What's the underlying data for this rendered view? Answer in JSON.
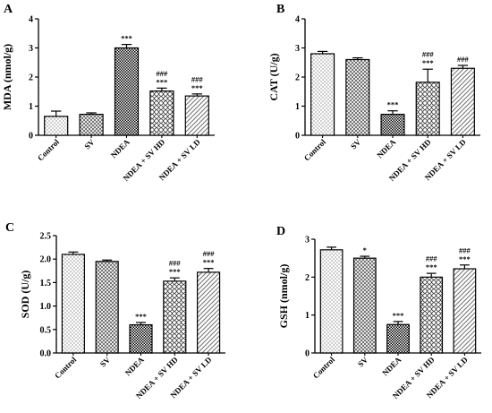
{
  "chart_data": [
    {
      "panel": "A",
      "type": "bar",
      "ylabel": "MDA (nmol/g)",
      "ylim": [
        0,
        4
      ],
      "yticks": [
        "0",
        "1",
        "2",
        "3",
        "4"
      ],
      "categories": [
        "Control",
        "SV",
        "NDEA",
        "NDEA + SV HD",
        "NDEA + SV LD"
      ],
      "values": [
        0.65,
        0.72,
        3.0,
        1.52,
        1.35
      ],
      "errors": [
        0.18,
        0.05,
        0.12,
        0.1,
        0.07
      ],
      "annotations": [
        [],
        [],
        [
          "***"
        ],
        [
          "###",
          "***"
        ],
        [
          "###",
          "***"
        ]
      ]
    },
    {
      "panel": "B",
      "type": "bar",
      "ylabel": "CAT (U/g)",
      "ylim": [
        0,
        4
      ],
      "yticks": [
        "0",
        "1",
        "2",
        "3",
        "4"
      ],
      "categories": [
        "Control",
        "SV",
        "NDEA",
        "NDEA + SV HD",
        "NDEA + SV LD"
      ],
      "values": [
        2.8,
        2.6,
        0.72,
        1.82,
        2.3
      ],
      "errors": [
        0.08,
        0.06,
        0.12,
        0.45,
        0.1
      ],
      "annotations": [
        [],
        [],
        [
          "***"
        ],
        [
          "###",
          "***"
        ],
        [
          "###"
        ]
      ]
    },
    {
      "panel": "C",
      "type": "bar",
      "ylabel": "SOD (U/g)",
      "ylim": [
        0,
        2.5
      ],
      "yticks": [
        "0.0",
        "0.5",
        "1.0",
        "1.5",
        "2.0",
        "2.5"
      ],
      "categories": [
        "Control",
        "SV",
        "NDEA",
        "NDEA + SV HD",
        "NDEA + SV LD"
      ],
      "values": [
        2.1,
        1.95,
        0.6,
        1.53,
        1.72
      ],
      "errors": [
        0.05,
        0.03,
        0.05,
        0.07,
        0.08
      ],
      "annotations": [
        [],
        [],
        [
          "***"
        ],
        [
          "###",
          "***"
        ],
        [
          "###",
          "***"
        ]
      ]
    },
    {
      "panel": "D",
      "type": "bar",
      "ylabel": "GSH (nmol/g)",
      "ylim": [
        0,
        3
      ],
      "yticks": [
        "0",
        "1",
        "2",
        "3"
      ],
      "categories": [
        "Control",
        "SV",
        "NDEA",
        "NDEA + SV HD",
        "NDEA + SV LD"
      ],
      "values": [
        2.72,
        2.5,
        0.75,
        2.0,
        2.22
      ],
      "errors": [
        0.07,
        0.05,
        0.08,
        0.1,
        0.1
      ],
      "annotations": [
        [],
        [
          "*"
        ],
        [
          "***"
        ],
        [
          "###",
          "***"
        ],
        [
          "###",
          "***"
        ]
      ]
    }
  ],
  "bar_fills": [
    "dots",
    "crosshatch",
    "checker",
    "diamond",
    "diagonal"
  ]
}
